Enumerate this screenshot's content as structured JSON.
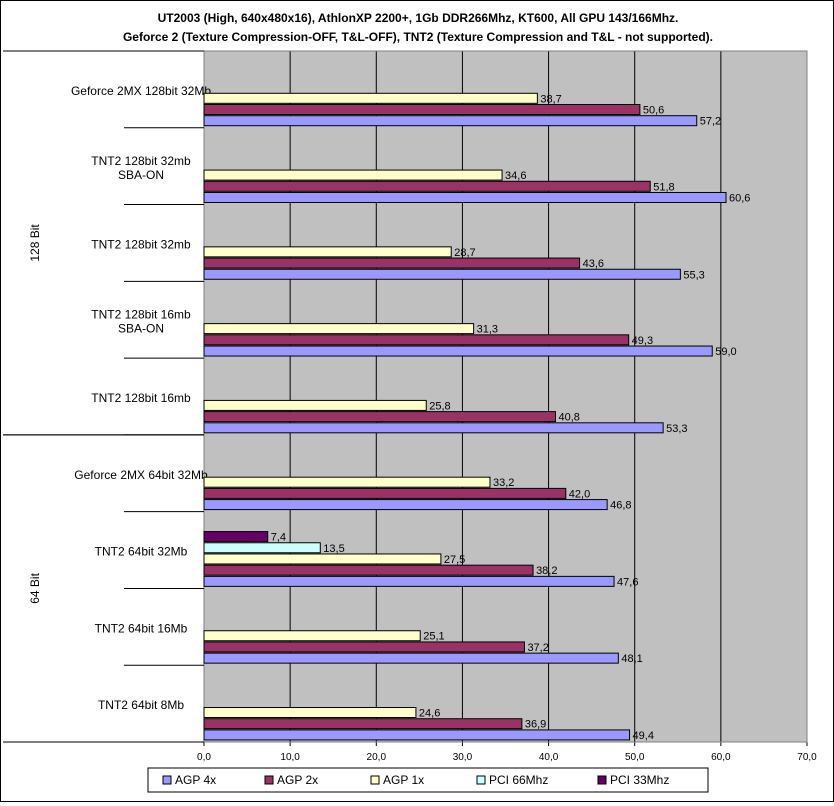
{
  "chart_data": {
    "type": "bar",
    "orientation": "horizontal",
    "title": [
      "UT2003 (High, 640x480x16), AthlonXP 2200+, 1Gb DDR266Mhz, KT600, All GPU 143/166Mhz.",
      "Geforce 2 (Texture Compression-OFF, T&L-OFF), TNT2 (Texture Compression and T&L - not supported)."
    ],
    "xlim": [
      0,
      70
    ],
    "xticks": [
      "0,0",
      "10,0",
      "20,0",
      "30,0",
      "40,0",
      "50,0",
      "60,0",
      "70,0"
    ],
    "grid": true,
    "legend_position": "bottom",
    "colors": {
      "plot_background": "#c0c0c0",
      "AGP 4x": "#9999ff",
      "AGP 2x": "#993366",
      "AGP 1x": "#ffffcc",
      "PCI 66Mhz": "#ccffff",
      "PCI 33Mhz": "#660066"
    },
    "groups": [
      {
        "name": "128 Bit",
        "categories": [
          0,
          1,
          2,
          3,
          4
        ]
      },
      {
        "name": "64 Bit",
        "categories": [
          5,
          6,
          7,
          8
        ]
      }
    ],
    "categories": [
      [
        "Geforce 2MX 128bit 32Mb"
      ],
      [
        "TNT2 128bit 32mb",
        "SBA-ON"
      ],
      [
        "TNT2 128bit 32mb"
      ],
      [
        "TNT2 128bit 16mb",
        "SBA-ON"
      ],
      [
        "TNT2 128bit 16mb"
      ],
      [
        "Geforce 2MX 64bit 32Mb"
      ],
      [
        "TNT2 64bit 32Mb"
      ],
      [
        "TNT2 64bit 16Mb"
      ],
      [
        "TNT2 64bit  8Mb"
      ]
    ],
    "series": [
      {
        "name": "AGP 4x",
        "values": [
          57.2,
          60.6,
          55.3,
          59.0,
          53.3,
          46.8,
          47.6,
          48.1,
          49.4
        ],
        "labels": [
          "57,2",
          "60,6",
          "55,3",
          "59,0",
          "53,3",
          "46,8",
          "47,6",
          "48,1",
          "49,4"
        ]
      },
      {
        "name": "AGP 2x",
        "values": [
          50.6,
          51.8,
          43.6,
          49.3,
          40.8,
          42.0,
          38.2,
          37.2,
          36.9
        ],
        "labels": [
          "50,6",
          "51,8",
          "43,6",
          "49,3",
          "40,8",
          "42,0",
          "38,2",
          "37,2",
          "36,9"
        ]
      },
      {
        "name": "AGP 1x",
        "values": [
          38.7,
          34.6,
          28.7,
          31.3,
          25.8,
          33.2,
          27.5,
          25.1,
          24.6
        ],
        "labels": [
          "38,7",
          "34,6",
          "28,7",
          "31,3",
          "25,8",
          "33,2",
          "27,5",
          "25,1",
          "24,6"
        ]
      },
      {
        "name": "PCI 66Mhz",
        "values": [
          null,
          null,
          null,
          null,
          null,
          null,
          13.5,
          null,
          null
        ],
        "labels": [
          "",
          "",
          "",
          "",
          "",
          "",
          "13,5",
          "",
          ""
        ]
      },
      {
        "name": "PCI 33Mhz",
        "values": [
          null,
          null,
          null,
          null,
          null,
          null,
          7.4,
          null,
          null
        ],
        "labels": [
          "",
          "",
          "",
          "",
          "",
          "",
          "7,4",
          "",
          ""
        ]
      }
    ]
  }
}
